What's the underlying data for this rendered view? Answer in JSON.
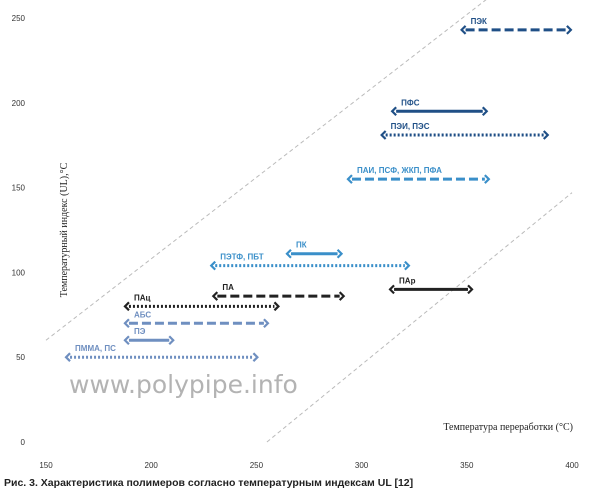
{
  "chart_data": {
    "type": "range",
    "xlabel": "Температура переработки (°С)",
    "ylabel": "Температурный индекс (UL),°С",
    "xlim": [
      150,
      400
    ],
    "ylim": [
      0,
      250
    ],
    "xticks": [
      "150",
      "200",
      "250",
      "300",
      "350",
      "400"
    ],
    "yticks": [
      "0",
      "50",
      "100",
      "150",
      "200",
      "250"
    ],
    "grid": false,
    "series": [
      {
        "name": "ПЭК",
        "x_start": 348,
        "x_end": 399,
        "y": 243,
        "style": "dashed",
        "color": "#1f4f86"
      },
      {
        "name": "ПФС",
        "x_start": 315,
        "x_end": 359,
        "y": 195,
        "style": "solid",
        "color": "#1f4f86"
      },
      {
        "name": "ПЭИ, ПЭС",
        "x_start": 310,
        "x_end": 388,
        "y": 181,
        "style": "dotted",
        "color": "#1f4f86"
      },
      {
        "name": "ПАИ, ПСФ, ЖКП, ПФА",
        "x_start": 294,
        "x_end": 360,
        "y": 155,
        "style": "dashed",
        "color": "#3a8fc9"
      },
      {
        "name": "ПК",
        "x_start": 265,
        "x_end": 290,
        "y": 111,
        "style": "solid",
        "color": "#3a8fc9"
      },
      {
        "name": "ПЭТФ, ПБТ",
        "x_start": 229,
        "x_end": 322,
        "y": 104,
        "style": "dotted",
        "color": "#3a8fc9"
      },
      {
        "name": "ПАр",
        "x_start": 314,
        "x_end": 352,
        "y": 90,
        "style": "solid",
        "color": "#222222"
      },
      {
        "name": "ПА",
        "x_start": 230,
        "x_end": 291,
        "y": 86,
        "style": "dashed",
        "color": "#222222"
      },
      {
        "name": "ПАц",
        "x_start": 188,
        "x_end": 260,
        "y": 80,
        "style": "dotted",
        "color": "#222222"
      },
      {
        "name": "АБС",
        "x_start": 188,
        "x_end": 255,
        "y": 70,
        "style": "dashed",
        "color": "#6f8fc0"
      },
      {
        "name": "ПЭ",
        "x_start": 188,
        "x_end": 210,
        "y": 60,
        "style": "solid",
        "color": "#6f8fc0"
      },
      {
        "name": "ПММА, ПС",
        "x_start": 160,
        "x_end": 250,
        "y": 50,
        "style": "dotted",
        "color": "#6f8fc0"
      }
    ],
    "reference_lines": [
      {
        "x": [
          150,
          400
        ],
        "y": [
          60,
          300
        ],
        "style": "dashed",
        "color": "#bbbbbb"
      },
      {
        "x": [
          255,
          400
        ],
        "y": [
          0,
          147
        ],
        "style": "dashed",
        "color": "#bbbbbb"
      }
    ]
  },
  "watermark": "www.polypipe.info",
  "caption": "Рис. 3. Характеристика полимеров согласно температурным индексам UL [12]"
}
